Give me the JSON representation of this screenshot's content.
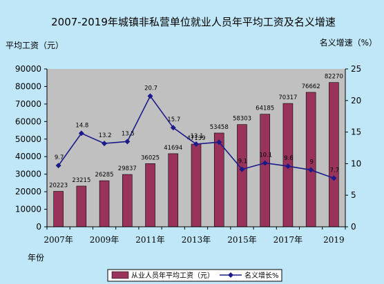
{
  "chart_data": {
    "type": "bar+line",
    "title": "2007-2019年城镇非私营单位就业人员年平均工资及名义增速",
    "left_unit": "平均工资（元）",
    "right_unit": "名义增速（%）",
    "xlabel": "年份",
    "categories": [
      "2007",
      "2008",
      "2009",
      "2010",
      "2011",
      "2012",
      "2013",
      "2014",
      "2015",
      "2016",
      "2017",
      "2018",
      "2019"
    ],
    "x_tick_labels": [
      "2007年",
      "",
      "2009年",
      "",
      "2011年",
      "",
      "2013年",
      "",
      "2015年",
      "",
      "2017年",
      "",
      "2019"
    ],
    "series": [
      {
        "name": "从业人员年平均工资（元）",
        "type": "bar",
        "axis": "left",
        "values": [
          20223,
          23215,
          26285,
          29837,
          36025,
          41694,
          47139,
          53458,
          58303,
          64185,
          70317,
          76662,
          82270
        ],
        "labels": [
          "20223",
          "23215",
          "26285",
          "29837",
          "36025",
          "41694",
          "47139",
          "53458",
          "58303",
          "64185",
          "70317",
          "76662",
          "82270"
        ]
      },
      {
        "name": "名义增长%",
        "type": "line",
        "axis": "right",
        "values": [
          9.7,
          14.8,
          13.2,
          13.5,
          20.7,
          15.7,
          13.1,
          13.4,
          9.1,
          10.1,
          9.6,
          9.0,
          7.7
        ],
        "labels": [
          "9.7",
          "14.8",
          "13.2",
          "13.5",
          "20.7",
          "15.7",
          "13.1",
          "",
          "9.1",
          "10.1",
          "9.6",
          "9",
          "7.7"
        ]
      }
    ],
    "y_left": {
      "min": 0,
      "max": 90000,
      "step": 10000
    },
    "y_right": {
      "min": 0,
      "max": 25,
      "step": 5
    },
    "grid": false,
    "legend_position": "bottom-right",
    "colors": {
      "bar": "#99335c",
      "line": "#1a1a8a",
      "plot_bg": "#c0c0c0",
      "page_bg": "#bfe7f7",
      "legend_bg": "#ffffff"
    }
  }
}
